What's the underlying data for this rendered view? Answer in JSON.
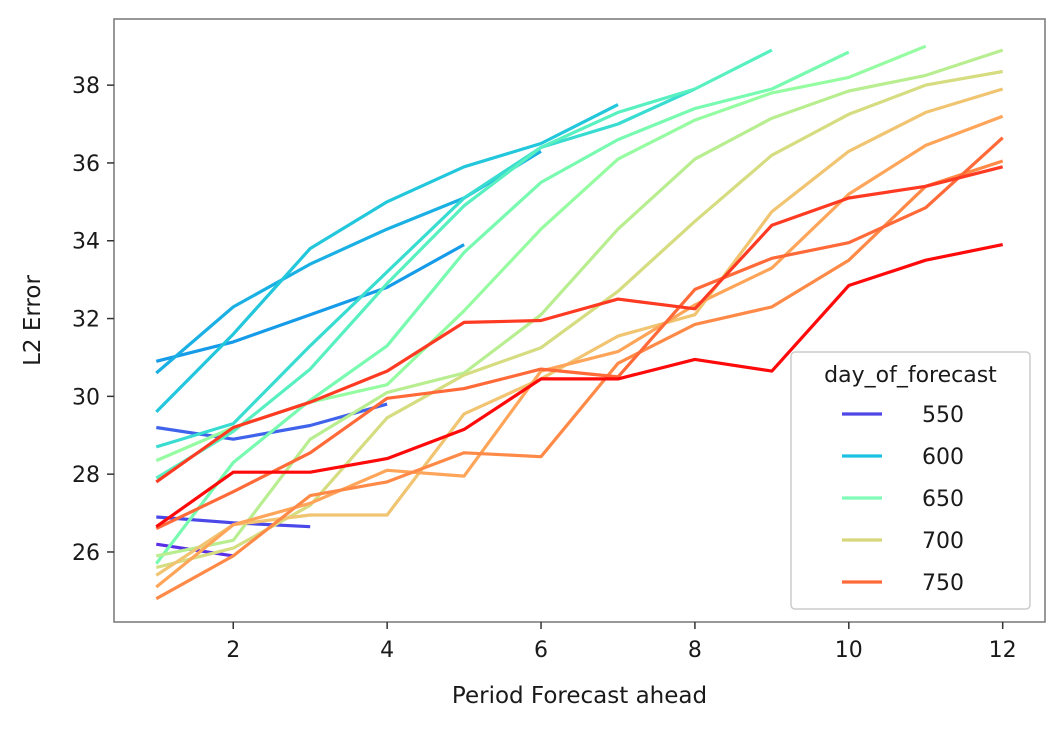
{
  "chart_data": {
    "type": "line",
    "xlabel": "Period Forecast ahead",
    "ylabel": "L2 Error",
    "xlim": [
      0.45,
      12.55
    ],
    "ylim": [
      24.2,
      39.7
    ],
    "xticks": [
      2,
      4,
      6,
      8,
      10,
      12
    ],
    "yticks": [
      26,
      28,
      30,
      32,
      34,
      36,
      38
    ],
    "grid": false,
    "legend": {
      "title": "day_of_forecast",
      "placement": "lower-right",
      "entries": [
        {
          "label": "550",
          "color": "#4f46e6"
        },
        {
          "label": "600",
          "color": "#1cc2e2"
        },
        {
          "label": "650",
          "color": "#7ffcb5"
        },
        {
          "label": "700",
          "color": "#d8d87a"
        },
        {
          "label": "750",
          "color": "#ff6a3a"
        }
      ]
    },
    "series": [
      {
        "color": "#5a2fe6",
        "x": [
          1,
          2
        ],
        "y": [
          26.2,
          25.9
        ]
      },
      {
        "color": "#4a48e8",
        "x": [
          1,
          2,
          3
        ],
        "y": [
          26.9,
          26.75,
          26.65
        ]
      },
      {
        "color": "#3f63ea",
        "x": [
          1,
          2,
          3,
          4
        ],
        "y": [
          29.2,
          28.9,
          29.25,
          29.8
        ]
      },
      {
        "color": "#159be8",
        "x": [
          1,
          2,
          3,
          4,
          5
        ],
        "y": [
          30.9,
          31.4,
          32.1,
          32.8,
          33.9
        ]
      },
      {
        "color": "#1bb0e4",
        "x": [
          1,
          2,
          3,
          4,
          5,
          6
        ],
        "y": [
          30.6,
          32.3,
          33.4,
          34.3,
          35.1,
          36.3
        ]
      },
      {
        "color": "#22c7dc",
        "x": [
          1,
          2,
          3,
          4,
          5,
          6,
          7
        ],
        "y": [
          29.6,
          31.6,
          33.8,
          35.0,
          35.9,
          36.5,
          37.5
        ]
      },
      {
        "color": "#38dcd0",
        "x": [
          1,
          2,
          3,
          4,
          5,
          6,
          7,
          8
        ],
        "y": [
          28.7,
          29.3,
          31.3,
          33.2,
          35.1,
          36.4,
          37.0,
          37.9
        ]
      },
      {
        "color": "#58f0c0",
        "x": [
          1,
          2,
          3,
          4,
          5,
          6,
          7,
          8,
          9
        ],
        "y": [
          27.9,
          29.1,
          30.7,
          32.9,
          34.9,
          36.4,
          37.3,
          37.9,
          38.9
        ]
      },
      {
        "color": "#78fab0",
        "x": [
          1,
          2,
          3,
          4,
          5,
          6,
          7,
          8,
          9,
          10
        ],
        "y": [
          25.7,
          28.3,
          29.9,
          31.3,
          33.7,
          35.5,
          36.6,
          37.4,
          37.9,
          38.85
        ]
      },
      {
        "color": "#96fca2",
        "x": [
          1,
          2,
          3,
          4,
          5,
          6,
          7,
          8,
          9,
          10,
          11
        ],
        "y": [
          28.35,
          29.2,
          29.85,
          30.3,
          32.2,
          34.3,
          36.1,
          37.1,
          37.8,
          38.2,
          39.0
        ]
      },
      {
        "color": "#b8ee90",
        "x": [
          1,
          2,
          3,
          4,
          5,
          6,
          7,
          8,
          9,
          10,
          11,
          12
        ],
        "y": [
          25.9,
          26.3,
          28.9,
          30.1,
          30.6,
          32.1,
          34.3,
          36.1,
          37.15,
          37.85,
          38.25,
          38.9
        ]
      },
      {
        "color": "#d6dc80",
        "x": [
          1,
          2,
          3,
          4,
          5,
          6,
          7,
          8,
          9,
          10,
          11,
          12
        ],
        "y": [
          25.6,
          26.1,
          27.2,
          29.45,
          30.55,
          31.25,
          32.7,
          34.5,
          36.2,
          37.25,
          38.0,
          38.35
        ]
      },
      {
        "color": "#f0c470",
        "x": [
          1,
          2,
          3,
          4,
          5,
          6,
          7,
          8,
          9,
          10,
          11,
          12
        ],
        "y": [
          25.4,
          26.7,
          26.95,
          26.95,
          29.55,
          30.45,
          31.55,
          32.1,
          34.75,
          36.3,
          37.3,
          37.9
        ]
      },
      {
        "color": "#ffa55a",
        "x": [
          1,
          2,
          3,
          4,
          5,
          6,
          7,
          8,
          9,
          10,
          11,
          12
        ],
        "y": [
          25.1,
          26.7,
          27.25,
          28.1,
          27.95,
          30.65,
          31.15,
          32.35,
          33.3,
          35.2,
          36.45,
          37.2
        ]
      },
      {
        "color": "#ff8a48",
        "x": [
          1,
          2,
          3,
          4,
          5,
          6,
          7,
          8,
          9,
          10,
          11,
          12
        ],
        "y": [
          24.8,
          25.9,
          27.45,
          27.8,
          28.55,
          28.45,
          30.85,
          31.85,
          32.3,
          33.5,
          35.4,
          36.05
        ]
      },
      {
        "color": "#ff6a38",
        "x": [
          1,
          2,
          3,
          4,
          5,
          6,
          7,
          8,
          9,
          10,
          11,
          12
        ],
        "y": [
          26.6,
          27.55,
          28.55,
          29.95,
          30.2,
          30.7,
          30.5,
          32.75,
          33.55,
          33.95,
          34.85,
          36.65
        ]
      },
      {
        "color": "#ff3a22",
        "x": [
          1,
          2,
          3,
          4,
          5,
          6,
          7,
          8,
          9,
          10,
          11,
          12
        ],
        "y": [
          27.8,
          29.2,
          29.85,
          30.65,
          31.9,
          31.95,
          32.5,
          32.25,
          34.4,
          35.1,
          35.4,
          35.9
        ]
      },
      {
        "color": "#ff0a0a",
        "x": [
          1,
          2,
          3,
          4,
          5,
          6,
          7,
          8,
          9,
          10,
          11,
          12
        ],
        "y": [
          26.65,
          28.05,
          28.05,
          28.4,
          29.15,
          30.45,
          30.45,
          30.95,
          30.65,
          32.85,
          33.5,
          33.9
        ]
      }
    ]
  }
}
